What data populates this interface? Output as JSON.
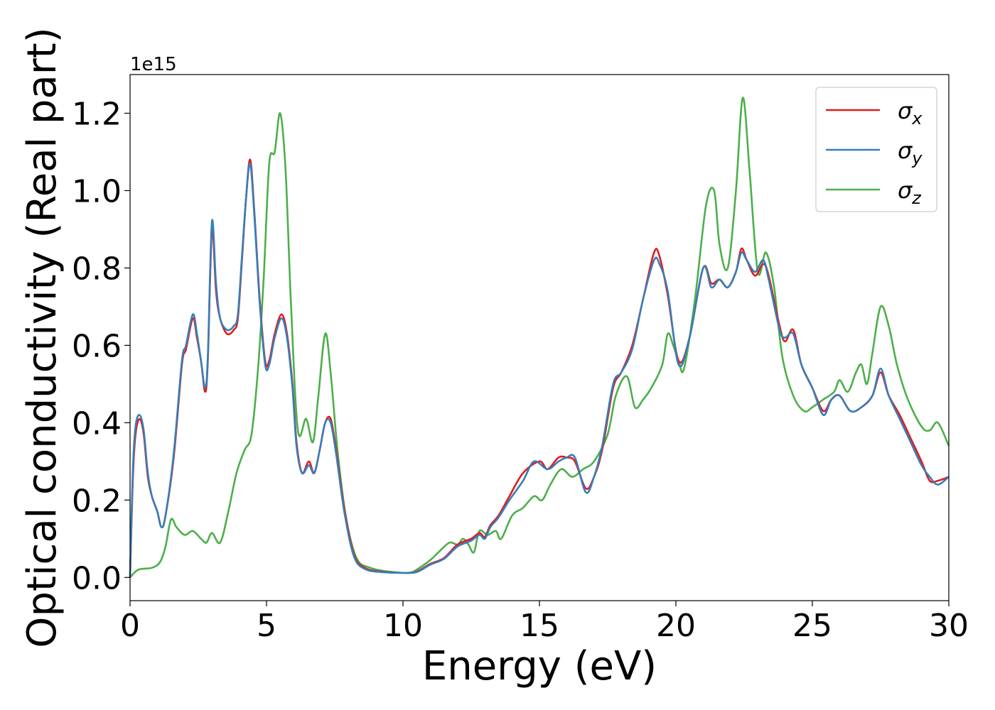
{
  "chart_data": {
    "type": "line",
    "xlabel": "Energy (eV)",
    "ylabel": "Optical conductivity (Real part)",
    "y_offset_label": "1e15",
    "xlim": [
      0,
      30
    ],
    "ylim": [
      -0.06,
      1.3
    ],
    "x_ticks": [
      0,
      5,
      10,
      15,
      20,
      25,
      30
    ],
    "x_tick_labels": [
      "0",
      "5",
      "10",
      "15",
      "20",
      "25",
      "30"
    ],
    "y_ticks": [
      0.0,
      0.2,
      0.4,
      0.6,
      0.8,
      1.0,
      1.2
    ],
    "y_tick_labels": [
      "0.0",
      "0.2",
      "0.4",
      "0.6",
      "0.8",
      "1.0",
      "1.2"
    ],
    "grid": false,
    "legend_position": "top-right",
    "series": [
      {
        "name": "σx",
        "symbol": "σ",
        "subscript": "x",
        "color": "#e41a1c",
        "points": [
          [
            0,
            0
          ],
          [
            0.1,
            0.25
          ],
          [
            0.2,
            0.37
          ],
          [
            0.35,
            0.41
          ],
          [
            0.5,
            0.37
          ],
          [
            0.65,
            0.26
          ],
          [
            0.8,
            0.21
          ],
          [
            1,
            0.17
          ],
          [
            1.15,
            0.13
          ],
          [
            1.3,
            0.16
          ],
          [
            1.6,
            0.31
          ],
          [
            1.9,
            0.55
          ],
          [
            2.05,
            0.59
          ],
          [
            2.3,
            0.67
          ],
          [
            2.45,
            0.62
          ],
          [
            2.6,
            0.56
          ],
          [
            2.75,
            0.48
          ],
          [
            2.85,
            0.56
          ],
          [
            3.0,
            0.9
          ],
          [
            3.15,
            0.74
          ],
          [
            3.3,
            0.67
          ],
          [
            3.55,
            0.63
          ],
          [
            3.8,
            0.64
          ],
          [
            3.95,
            0.67
          ],
          [
            4.1,
            0.82
          ],
          [
            4.25,
            0.98
          ],
          [
            4.4,
            1.08
          ],
          [
            4.55,
            0.95
          ],
          [
            4.75,
            0.72
          ],
          [
            4.95,
            0.56
          ],
          [
            5.1,
            0.56
          ],
          [
            5.3,
            0.63
          ],
          [
            5.55,
            0.68
          ],
          [
            5.75,
            0.63
          ],
          [
            5.95,
            0.5
          ],
          [
            6.1,
            0.35
          ],
          [
            6.3,
            0.27
          ],
          [
            6.55,
            0.3
          ],
          [
            6.75,
            0.27
          ],
          [
            6.95,
            0.33
          ],
          [
            7.15,
            0.4
          ],
          [
            7.35,
            0.41
          ],
          [
            7.55,
            0.33
          ],
          [
            7.85,
            0.18
          ],
          [
            8.2,
            0.06
          ],
          [
            8.6,
            0.025
          ],
          [
            9.2,
            0.015
          ],
          [
            10,
            0.012
          ],
          [
            10.5,
            0.015
          ],
          [
            11,
            0.035
          ],
          [
            11.5,
            0.05
          ],
          [
            12,
            0.085
          ],
          [
            12.5,
            0.1
          ],
          [
            12.8,
            0.115
          ],
          [
            13,
            0.105
          ],
          [
            13.2,
            0.135
          ],
          [
            13.5,
            0.16
          ],
          [
            13.9,
            0.21
          ],
          [
            14.4,
            0.27
          ],
          [
            15,
            0.3
          ],
          [
            15.3,
            0.28
          ],
          [
            15.7,
            0.31
          ],
          [
            16.0,
            0.31
          ],
          [
            16.3,
            0.3
          ],
          [
            16.7,
            0.23
          ],
          [
            17.0,
            0.26
          ],
          [
            17.3,
            0.33
          ],
          [
            17.7,
            0.49
          ],
          [
            18,
            0.53
          ],
          [
            18.4,
            0.6
          ],
          [
            18.8,
            0.72
          ],
          [
            19.2,
            0.84
          ],
          [
            19.4,
            0.83
          ],
          [
            19.7,
            0.73
          ],
          [
            20.1,
            0.56
          ],
          [
            20.5,
            0.62
          ],
          [
            21.0,
            0.8
          ],
          [
            21.3,
            0.76
          ],
          [
            21.6,
            0.77
          ],
          [
            21.9,
            0.75
          ],
          [
            22.2,
            0.79
          ],
          [
            22.4,
            0.85
          ],
          [
            22.6,
            0.82
          ],
          [
            22.9,
            0.78
          ],
          [
            23.2,
            0.81
          ],
          [
            23.4,
            0.78
          ],
          [
            23.8,
            0.65
          ],
          [
            24,
            0.61
          ],
          [
            24.3,
            0.64
          ],
          [
            24.6,
            0.55
          ],
          [
            25,
            0.49
          ],
          [
            25.4,
            0.43
          ],
          [
            25.7,
            0.46
          ],
          [
            26,
            0.47
          ],
          [
            26.4,
            0.43
          ],
          [
            26.8,
            0.44
          ],
          [
            27.2,
            0.47
          ],
          [
            27.5,
            0.53
          ],
          [
            27.8,
            0.47
          ],
          [
            28.2,
            0.42
          ],
          [
            28.6,
            0.36
          ],
          [
            29,
            0.3
          ],
          [
            29.3,
            0.25
          ],
          [
            29.6,
            0.25
          ],
          [
            30,
            0.26
          ]
        ]
      },
      {
        "name": "σy",
        "symbol": "σ",
        "subscript": "y",
        "color": "#377eb8",
        "points": [
          [
            0,
            0
          ],
          [
            0.1,
            0.27
          ],
          [
            0.2,
            0.39
          ],
          [
            0.35,
            0.42
          ],
          [
            0.5,
            0.38
          ],
          [
            0.65,
            0.27
          ],
          [
            0.8,
            0.21
          ],
          [
            1,
            0.17
          ],
          [
            1.15,
            0.13
          ],
          [
            1.3,
            0.16
          ],
          [
            1.6,
            0.32
          ],
          [
            1.9,
            0.56
          ],
          [
            2.05,
            0.6
          ],
          [
            2.3,
            0.68
          ],
          [
            2.45,
            0.63
          ],
          [
            2.6,
            0.56
          ],
          [
            2.75,
            0.49
          ],
          [
            2.85,
            0.57
          ],
          [
            3.0,
            0.92
          ],
          [
            3.15,
            0.76
          ],
          [
            3.3,
            0.67
          ],
          [
            3.55,
            0.64
          ],
          [
            3.8,
            0.65
          ],
          [
            3.95,
            0.68
          ],
          [
            4.1,
            0.83
          ],
          [
            4.25,
            0.98
          ],
          [
            4.4,
            1.07
          ],
          [
            4.55,
            0.94
          ],
          [
            4.75,
            0.71
          ],
          [
            4.95,
            0.55
          ],
          [
            5.1,
            0.55
          ],
          [
            5.3,
            0.62
          ],
          [
            5.55,
            0.67
          ],
          [
            5.75,
            0.62
          ],
          [
            5.95,
            0.49
          ],
          [
            6.1,
            0.34
          ],
          [
            6.3,
            0.27
          ],
          [
            6.55,
            0.29
          ],
          [
            6.75,
            0.27
          ],
          [
            6.95,
            0.33
          ],
          [
            7.15,
            0.4
          ],
          [
            7.35,
            0.4
          ],
          [
            7.55,
            0.32
          ],
          [
            7.85,
            0.17
          ],
          [
            8.2,
            0.055
          ],
          [
            8.6,
            0.022
          ],
          [
            9.2,
            0.014
          ],
          [
            10,
            0.012
          ],
          [
            10.5,
            0.014
          ],
          [
            11,
            0.033
          ],
          [
            11.5,
            0.048
          ],
          [
            12,
            0.08
          ],
          [
            12.5,
            0.095
          ],
          [
            12.8,
            0.11
          ],
          [
            13,
            0.1
          ],
          [
            13.2,
            0.13
          ],
          [
            13.5,
            0.155
          ],
          [
            13.9,
            0.2
          ],
          [
            14.4,
            0.25
          ],
          [
            14.8,
            0.3
          ],
          [
            15.3,
            0.28
          ],
          [
            15.7,
            0.3
          ],
          [
            16.0,
            0.31
          ],
          [
            16.3,
            0.31
          ],
          [
            16.7,
            0.22
          ],
          [
            17.0,
            0.26
          ],
          [
            17.3,
            0.34
          ],
          [
            17.7,
            0.5
          ],
          [
            18,
            0.53
          ],
          [
            18.4,
            0.59
          ],
          [
            18.8,
            0.72
          ],
          [
            19.2,
            0.82
          ],
          [
            19.4,
            0.81
          ],
          [
            19.7,
            0.74
          ],
          [
            20.1,
            0.55
          ],
          [
            20.5,
            0.62
          ],
          [
            21.0,
            0.8
          ],
          [
            21.3,
            0.75
          ],
          [
            21.6,
            0.77
          ],
          [
            21.9,
            0.75
          ],
          [
            22.2,
            0.79
          ],
          [
            22.4,
            0.84
          ],
          [
            22.6,
            0.82
          ],
          [
            22.9,
            0.79
          ],
          [
            23.2,
            0.82
          ],
          [
            23.4,
            0.77
          ],
          [
            23.8,
            0.64
          ],
          [
            24,
            0.62
          ],
          [
            24.3,
            0.63
          ],
          [
            24.6,
            0.55
          ],
          [
            25,
            0.49
          ],
          [
            25.4,
            0.42
          ],
          [
            25.7,
            0.46
          ],
          [
            26,
            0.47
          ],
          [
            26.4,
            0.43
          ],
          [
            26.8,
            0.44
          ],
          [
            27.2,
            0.47
          ],
          [
            27.5,
            0.54
          ],
          [
            27.8,
            0.47
          ],
          [
            28.2,
            0.41
          ],
          [
            28.6,
            0.35
          ],
          [
            29,
            0.29
          ],
          [
            29.3,
            0.26
          ],
          [
            29.6,
            0.24
          ],
          [
            30,
            0.26
          ]
        ]
      },
      {
        "name": "σz",
        "symbol": "σ",
        "subscript": "z",
        "color": "#4daf4a",
        "points": [
          [
            0,
            0
          ],
          [
            0.3,
            0.02
          ],
          [
            0.8,
            0.025
          ],
          [
            1.1,
            0.04
          ],
          [
            1.3,
            0.08
          ],
          [
            1.5,
            0.15
          ],
          [
            1.7,
            0.13
          ],
          [
            2,
            0.11
          ],
          [
            2.3,
            0.12
          ],
          [
            2.6,
            0.1
          ],
          [
            2.8,
            0.09
          ],
          [
            3.0,
            0.115
          ],
          [
            3.3,
            0.09
          ],
          [
            3.6,
            0.17
          ],
          [
            3.9,
            0.27
          ],
          [
            4.2,
            0.33
          ],
          [
            4.45,
            0.37
          ],
          [
            4.7,
            0.55
          ],
          [
            4.9,
            0.78
          ],
          [
            5.1,
            1.07
          ],
          [
            5.3,
            1.1
          ],
          [
            5.5,
            1.2
          ],
          [
            5.7,
            1.05
          ],
          [
            5.9,
            0.7
          ],
          [
            6.15,
            0.38
          ],
          [
            6.45,
            0.41
          ],
          [
            6.7,
            0.35
          ],
          [
            6.9,
            0.47
          ],
          [
            7.15,
            0.63
          ],
          [
            7.35,
            0.53
          ],
          [
            7.6,
            0.33
          ],
          [
            7.9,
            0.16
          ],
          [
            8.3,
            0.05
          ],
          [
            8.8,
            0.025
          ],
          [
            9.5,
            0.015
          ],
          [
            10.2,
            0.012
          ],
          [
            10.5,
            0.02
          ],
          [
            11,
            0.045
          ],
          [
            11.3,
            0.065
          ],
          [
            11.7,
            0.09
          ],
          [
            12.0,
            0.085
          ],
          [
            12.2,
            0.1
          ],
          [
            12.4,
            0.085
          ],
          [
            12.6,
            0.065
          ],
          [
            12.8,
            0.12
          ],
          [
            13.1,
            0.11
          ],
          [
            13.4,
            0.12
          ],
          [
            13.6,
            0.1
          ],
          [
            14.0,
            0.16
          ],
          [
            14.4,
            0.18
          ],
          [
            14.8,
            0.21
          ],
          [
            15.1,
            0.2
          ],
          [
            15.4,
            0.24
          ],
          [
            15.8,
            0.28
          ],
          [
            16.2,
            0.26
          ],
          [
            16.6,
            0.28
          ],
          [
            17.0,
            0.3
          ],
          [
            17.5,
            0.37
          ],
          [
            17.8,
            0.47
          ],
          [
            18.2,
            0.52
          ],
          [
            18.5,
            0.44
          ],
          [
            18.8,
            0.46
          ],
          [
            19.1,
            0.49
          ],
          [
            19.5,
            0.55
          ],
          [
            19.7,
            0.63
          ],
          [
            19.9,
            0.6
          ],
          [
            20.1,
            0.56
          ],
          [
            20.3,
            0.54
          ],
          [
            20.7,
            0.72
          ],
          [
            21.1,
            0.96
          ],
          [
            21.4,
            1.0
          ],
          [
            21.6,
            0.86
          ],
          [
            21.9,
            0.8
          ],
          [
            22.2,
            1.0
          ],
          [
            22.45,
            1.24
          ],
          [
            22.7,
            1.05
          ],
          [
            23.0,
            0.79
          ],
          [
            23.3,
            0.84
          ],
          [
            23.6,
            0.75
          ],
          [
            23.9,
            0.57
          ],
          [
            24.3,
            0.47
          ],
          [
            24.7,
            0.43
          ],
          [
            25.0,
            0.44
          ],
          [
            25.4,
            0.46
          ],
          [
            25.8,
            0.48
          ],
          [
            26.0,
            0.51
          ],
          [
            26.3,
            0.48
          ],
          [
            26.6,
            0.53
          ],
          [
            26.8,
            0.55
          ],
          [
            27.0,
            0.5
          ],
          [
            27.2,
            0.58
          ],
          [
            27.5,
            0.7
          ],
          [
            27.8,
            0.65
          ],
          [
            28.1,
            0.55
          ],
          [
            28.5,
            0.46
          ],
          [
            29.0,
            0.39
          ],
          [
            29.3,
            0.38
          ],
          [
            29.6,
            0.4
          ],
          [
            30,
            0.34
          ]
        ]
      }
    ]
  }
}
